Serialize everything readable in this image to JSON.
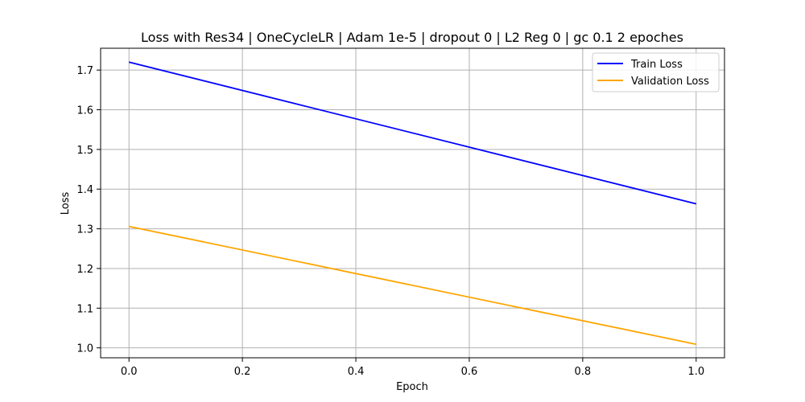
{
  "chart_data": {
    "type": "line",
    "title": "Loss with Res34 | OneCycleLR | Adam 1e-5 | dropout 0 | L2 Reg 0 | gc 0.1 2 epoches",
    "xlabel": "Epoch",
    "ylabel": "Loss",
    "x": [
      0.0,
      1.0
    ],
    "xlim": [
      -0.05,
      1.05
    ],
    "ylim": [
      0.975,
      1.755
    ],
    "xticks": [
      0.0,
      0.2,
      0.4,
      0.6,
      0.8,
      1.0
    ],
    "xtick_labels": [
      "0.0",
      "0.2",
      "0.4",
      "0.6",
      "0.8",
      "1.0"
    ],
    "yticks": [
      1.0,
      1.1,
      1.2,
      1.3,
      1.4,
      1.5,
      1.6,
      1.7
    ],
    "ytick_labels": [
      "1.0",
      "1.1",
      "1.2",
      "1.3",
      "1.4",
      "1.5",
      "1.6",
      "1.7"
    ],
    "grid": true,
    "legend_position": "top-right",
    "series": [
      {
        "name": "Train Loss",
        "color": "#0000ff",
        "values": [
          1.72,
          1.363
        ]
      },
      {
        "name": "Validation Loss",
        "color": "#ffa500",
        "values": [
          1.306,
          1.009
        ]
      }
    ]
  }
}
